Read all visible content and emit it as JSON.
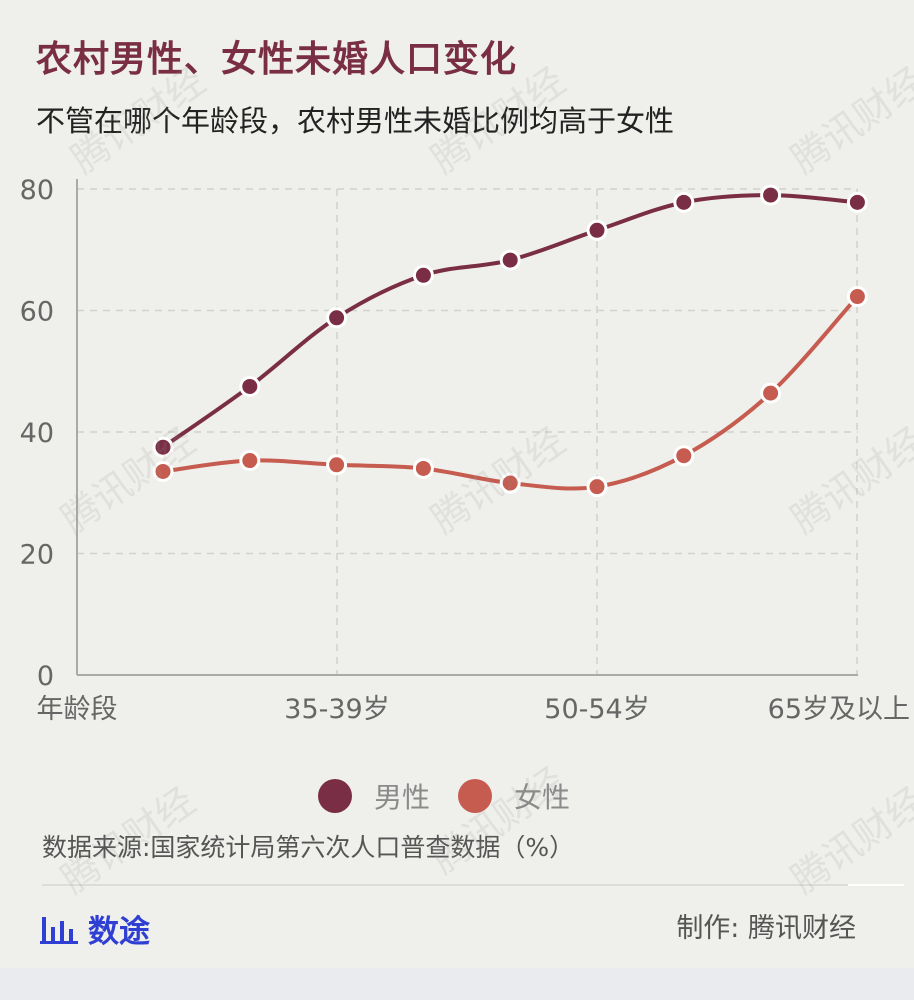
{
  "title": "农村男性、女性未婚人口变化",
  "subtitle": "不管在哪个年龄段，农村男性未婚比例均高于女性",
  "chart_data": {
    "type": "line",
    "x_tick_labels": [
      "年龄段",
      "35-39岁",
      "50-54岁",
      "65岁及以上"
    ],
    "y_ticks": [
      "0",
      "20",
      "40",
      "60",
      "80"
    ],
    "ylim": [
      0,
      80
    ],
    "grid": true,
    "legend_position": "bottom",
    "series": [
      {
        "name": "男性",
        "color": "#7a2e45",
        "values": [
          37.5,
          47.5,
          58.8,
          65.8,
          68.3,
          73.2,
          77.8,
          79.0,
          77.8
        ]
      },
      {
        "name": "女性",
        "color": "#c55c4f",
        "values": [
          33.5,
          35.3,
          34.6,
          34.0,
          31.6,
          31.0,
          36.1,
          46.4,
          62.3
        ]
      }
    ]
  },
  "source": "数据来源:国家统计局第六次人口普查数据（%）",
  "brand": {
    "icon": "bar-chart-icon",
    "label": "数途",
    "color": "#2f3fd4"
  },
  "credit": "制作: 腾讯财经",
  "watermark": "腾讯财经"
}
